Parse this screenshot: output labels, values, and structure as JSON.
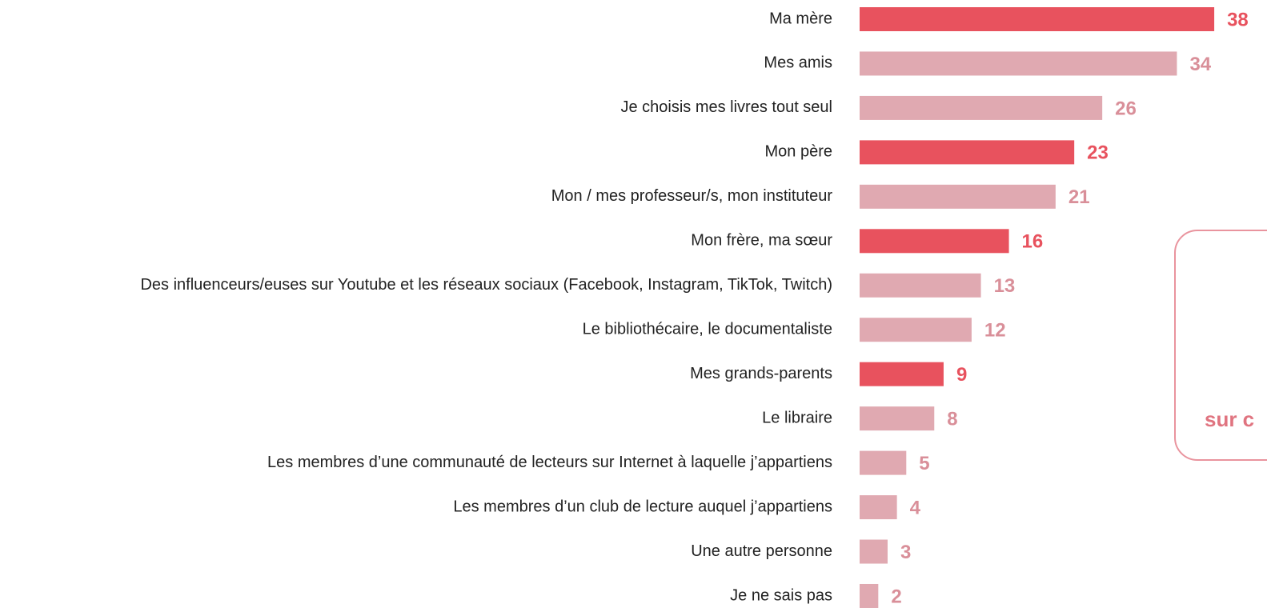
{
  "chart_data": {
    "type": "bar",
    "orientation": "horizontal",
    "categories": [
      "Ma mère",
      "Mes amis",
      "Je choisis mes livres tout seul",
      "Mon père",
      "Mon / mes professeur/s, mon instituteur",
      "Mon frère, ma sœur",
      "Des influenceurs/euses sur Youtube et les réseaux sociaux (Facebook, Instagram, TikTok, Twitch)",
      "Le bibliothécaire, le documentaliste",
      "Mes grands-parents",
      "Le libraire",
      "Les membres d’une communauté de lecteurs sur Internet à laquelle j’appartiens",
      "Les membres d’un club de lecture auquel j’appartiens",
      "Une autre personne",
      "Je ne sais pas"
    ],
    "values": [
      38,
      34,
      26,
      23,
      21,
      16,
      13,
      12,
      9,
      8,
      5,
      4,
      3,
      2
    ],
    "colors": [
      "#e8525e",
      "#e0a9b1",
      "#e0a9b1",
      "#e8525e",
      "#e0a9b1",
      "#e8525e",
      "#e0a9b1",
      "#e0a9b1",
      "#e8525e",
      "#e0a9b1",
      "#e0a9b1",
      "#e0a9b1",
      "#e0a9b1",
      "#e0a9b1"
    ],
    "label_colors": [
      "#e8525e",
      "#d98f99",
      "#d98f99",
      "#e8525e",
      "#d98f99",
      "#e8525e",
      "#d98f99",
      "#d98f99",
      "#e8525e",
      "#d98f99",
      "#d98f99",
      "#d98f99",
      "#d98f99",
      "#d98f99"
    ],
    "annotation": "sur c"
  }
}
